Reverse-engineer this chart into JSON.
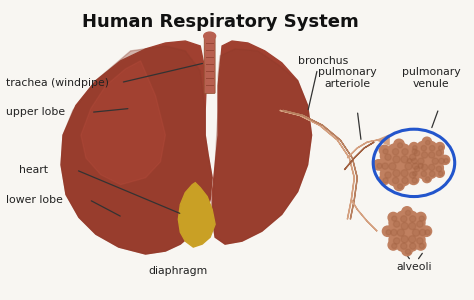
{
  "title": "Human Respiratory System",
  "title_fontsize": 13,
  "title_fontweight": "bold",
  "bg_color": "#f8f6f2",
  "lung_dark": "#8b3a2a",
  "lung_mid": "#a04030",
  "lung_light": "#c05040",
  "trachea_color": "#b86050",
  "bronchus_color": "#d4a080",
  "heart_color": "#c9a025",
  "alveoli_color": "#c08060",
  "alveoli_dark": "#a06040",
  "blue_ring_color": "#2255cc",
  "line_color": "#333333",
  "label_color": "#222222",
  "label_fontsize": 7.8,
  "labels": {
    "trachea": "trachea (windpipe)",
    "upper_lobe": "upper lobe",
    "heart": "heart",
    "lower_lobe": "lower lobe",
    "diaphragm": "diaphragm",
    "bronchus": "bronchus",
    "pulmonary_arteriole": "pulmonary\narteriole",
    "pulmonary_venule": "pulmonary\nvenule",
    "alveoli": "alveoli"
  }
}
